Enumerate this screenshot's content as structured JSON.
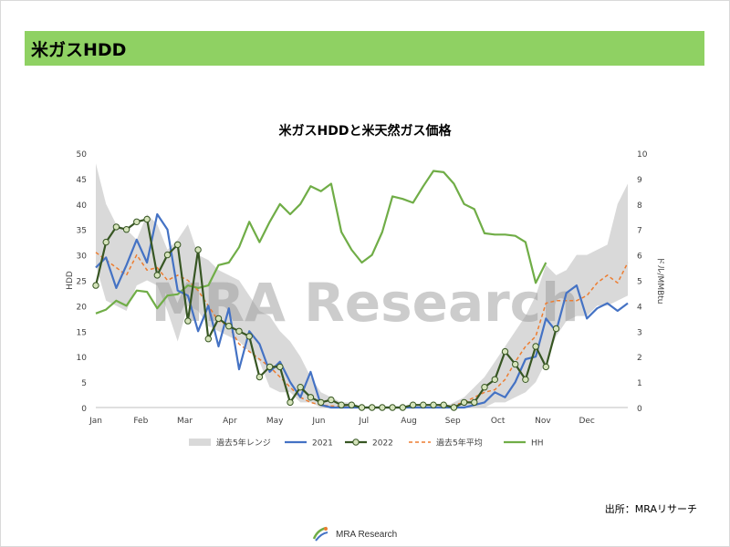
{
  "header": {
    "title": "米ガスHDD"
  },
  "source": "出所：MRAリサーチ",
  "footer": {
    "logo_text": "MRA Research"
  },
  "watermark": "MRA Research",
  "colors": {
    "header_green": "#8fd163",
    "band": "#d9d9d9",
    "y2021": "#4472c4",
    "y2022": "#375623",
    "avg": "#ed7d31",
    "hh": "#70ad47"
  },
  "chart_data": {
    "type": "line",
    "title": "米ガスHDDと米天然ガス価格",
    "ylabel": "HDD",
    "y2label": "ドル/MMBtu",
    "ylim": [
      0,
      50
    ],
    "y2lim": [
      0,
      10
    ],
    "yticks": [
      0,
      5,
      10,
      15,
      20,
      25,
      30,
      35,
      40,
      45,
      50
    ],
    "y2ticks": [
      0,
      1,
      2,
      3,
      4,
      5,
      6,
      7,
      8,
      9,
      10
    ],
    "xlim": [
      1,
      53
    ],
    "month_labels": [
      "Jan",
      "Feb",
      "Mar",
      "Apr",
      "May",
      "Jun",
      "Jul",
      "Aug",
      "Sep",
      "Oct",
      "Nov",
      "Dec"
    ],
    "month_weeks": [
      1,
      5.4,
      9.7,
      14.1,
      18.5,
      22.8,
      27.2,
      31.6,
      35.9,
      40.3,
      44.7,
      49
    ],
    "legend_position": "bottom",
    "series": [
      {
        "name": "過去5年レンジ",
        "type": "band",
        "x": [
          1,
          2,
          3,
          4,
          5,
          6,
          7,
          8,
          9,
          10,
          11,
          12,
          13,
          14,
          15,
          16,
          17,
          18,
          19,
          20,
          21,
          22,
          23,
          24,
          25,
          26,
          27,
          28,
          29,
          30,
          31,
          32,
          33,
          34,
          35,
          36,
          37,
          38,
          39,
          40,
          41,
          42,
          43,
          44,
          45,
          46,
          47,
          48,
          49,
          50,
          51,
          52,
          53
        ],
        "low": [
          28,
          21,
          20,
          19,
          24,
          25,
          24,
          19,
          13,
          20,
          19,
          16,
          15,
          14,
          13,
          11,
          9,
          4,
          3,
          3,
          1,
          1,
          0,
          0,
          0,
          0,
          0,
          0,
          0,
          0,
          0,
          0,
          0,
          0,
          0,
          0,
          0,
          0,
          0,
          1,
          1,
          2,
          3,
          5,
          9,
          14,
          17,
          18,
          18,
          20,
          20,
          21,
          22
        ],
        "high": [
          48,
          40,
          36,
          35,
          33,
          38,
          36,
          31,
          33,
          36,
          30,
          29,
          27,
          26,
          25,
          22,
          19,
          18,
          15,
          13,
          10,
          6,
          3,
          2,
          1,
          1,
          0,
          0,
          0,
          0,
          0,
          0,
          0,
          0,
          0,
          1,
          2,
          4,
          6,
          9,
          12,
          15,
          18,
          22,
          28,
          26,
          27,
          30,
          30,
          31,
          32,
          40,
          44
        ]
      },
      {
        "name": "2021",
        "color": "#4472c4",
        "x": [
          1,
          2,
          3,
          4,
          5,
          6,
          7,
          8,
          9,
          10,
          11,
          12,
          13,
          14,
          15,
          16,
          17,
          18,
          19,
          20,
          21,
          22,
          23,
          24,
          25,
          26,
          27,
          28,
          29,
          30,
          31,
          32,
          33,
          34,
          35,
          36,
          37,
          38,
          39,
          40,
          41,
          42,
          43,
          44,
          45,
          46,
          47,
          48,
          49,
          50,
          51,
          52,
          53
        ],
        "values": [
          27.5,
          29.5,
          23.5,
          28,
          33,
          28.5,
          38,
          35,
          23,
          22,
          15,
          20,
          12,
          19.5,
          7.5,
          15,
          12.5,
          7,
          9,
          5,
          2,
          7,
          0.5,
          0,
          0,
          0,
          0,
          0,
          0,
          0,
          0,
          0,
          0,
          0,
          0,
          0,
          0,
          0.5,
          1,
          3,
          2,
          5,
          9.5,
          10,
          17.5,
          15,
          22.5,
          24,
          17.5,
          19.5,
          20.5,
          19,
          20.5
        ]
      },
      {
        "name": "2022",
        "color": "#375623",
        "x": [
          1,
          2,
          3,
          4,
          5,
          6,
          7,
          8,
          9,
          10,
          11,
          12,
          13,
          14,
          15,
          16,
          17,
          18,
          19,
          20,
          21,
          22,
          23,
          24,
          25,
          26,
          27,
          28,
          29,
          30,
          31,
          32,
          33,
          34,
          35,
          36,
          37,
          38,
          39,
          40,
          41,
          42,
          43,
          44,
          45,
          46
        ],
        "values": [
          24,
          32.5,
          35.5,
          35,
          36.5,
          37,
          26,
          30,
          32,
          17,
          31,
          13.5,
          17.5,
          16,
          15,
          14,
          6,
          8,
          8,
          1,
          4,
          2,
          1,
          1.5,
          0.5,
          0.5,
          0,
          0,
          0,
          0,
          0,
          0.5,
          0.5,
          0.5,
          0.5,
          0,
          1,
          1,
          4,
          5.5,
          11,
          8.5,
          5.5,
          12,
          8,
          15.5
        ]
      },
      {
        "name": "過去5年平均",
        "color": "#ed7d31",
        "dash": true,
        "x": [
          1,
          2,
          3,
          4,
          5,
          6,
          7,
          8,
          9,
          10,
          11,
          12,
          13,
          14,
          15,
          16,
          17,
          18,
          19,
          20,
          21,
          22,
          23,
          24,
          25,
          26,
          27,
          28,
          29,
          30,
          31,
          32,
          33,
          34,
          35,
          36,
          37,
          38,
          39,
          40,
          41,
          42,
          43,
          44,
          45,
          46,
          47,
          48,
          49,
          50,
          51,
          52,
          53
        ],
        "values": [
          30.5,
          29,
          27.5,
          26,
          30,
          27,
          27.5,
          25,
          26,
          25,
          23,
          20,
          17,
          16,
          12.5,
          11,
          9.5,
          8,
          6,
          4,
          2,
          1,
          0.5,
          0.3,
          0.2,
          0,
          0,
          0,
          0,
          0,
          0,
          0,
          0,
          0,
          0.2,
          0.5,
          1,
          2,
          3,
          3.5,
          5.5,
          9,
          12,
          14,
          20.5,
          21,
          21,
          21,
          22,
          24.5,
          26,
          24.5,
          28.5
        ]
      },
      {
        "name": "HH",
        "color": "#70ad47",
        "axis": "right",
        "x": [
          1,
          2,
          3,
          4,
          5,
          6,
          7,
          8,
          9,
          10,
          11,
          12,
          13,
          14,
          15,
          16,
          17,
          18,
          19,
          20,
          21,
          22,
          23,
          24,
          25,
          26,
          27,
          28,
          29,
          30,
          31,
          32,
          33,
          34,
          35,
          36,
          37,
          38,
          39,
          40,
          41,
          42,
          43,
          44,
          45
        ],
        "values": [
          3.7,
          3.85,
          4.2,
          4.0,
          4.6,
          4.55,
          3.9,
          4.4,
          4.45,
          4.8,
          4.7,
          4.8,
          5.6,
          5.7,
          6.3,
          7.3,
          6.5,
          7.3,
          8.0,
          7.6,
          8.0,
          8.7,
          8.5,
          8.8,
          6.9,
          6.2,
          5.7,
          6.0,
          6.9,
          8.3,
          8.2,
          8.05,
          8.7,
          9.3,
          9.25,
          8.8,
          8.0,
          7.8,
          6.85,
          6.8,
          6.8,
          6.75,
          6.5,
          4.9,
          5.7
        ]
      }
    ]
  }
}
